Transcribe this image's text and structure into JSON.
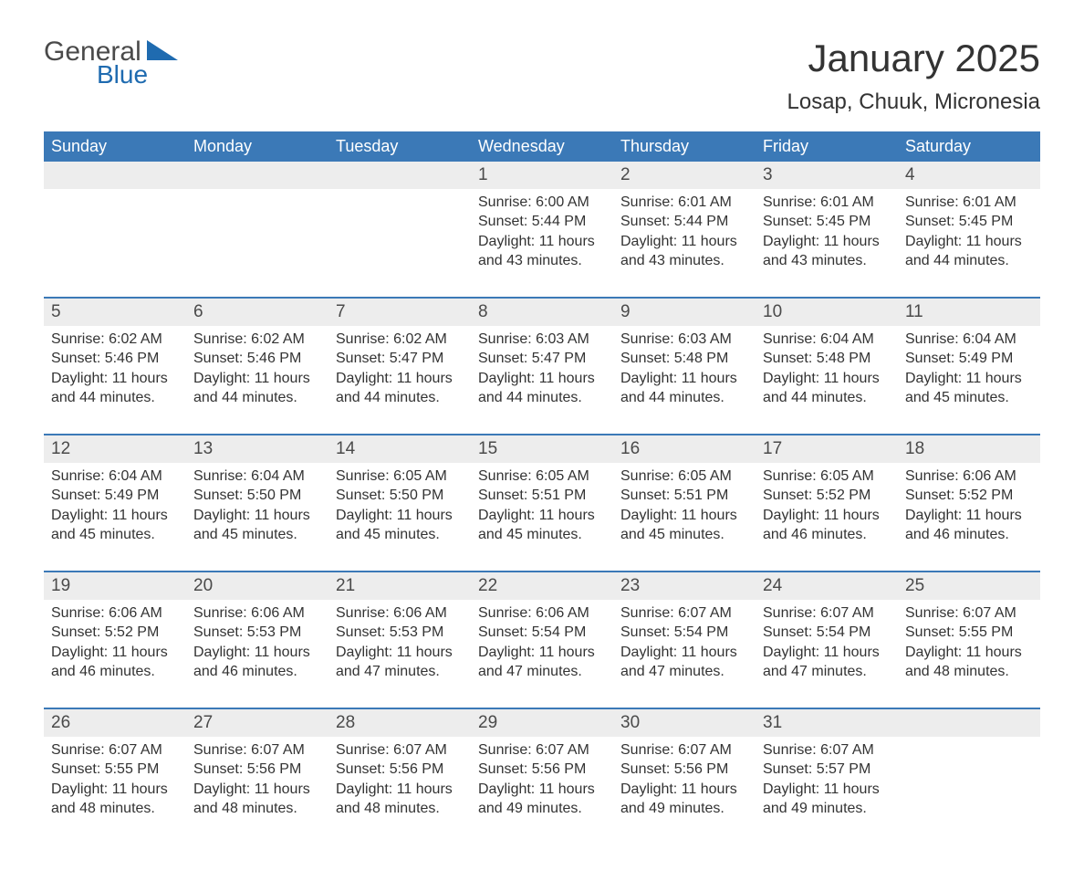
{
  "logo": {
    "word1": "General",
    "word2": "Blue"
  },
  "title": "January 2025",
  "location": "Losap, Chuuk, Micronesia",
  "colors": {
    "header_bg": "#3b79b7",
    "header_text": "#ffffff",
    "daynum_bg": "#ededed",
    "daynum_border": "#3b79b7",
    "body_text": "#333333",
    "logo_blue": "#1f6bb0",
    "page_bg": "#ffffff"
  },
  "day_names": [
    "Sunday",
    "Monday",
    "Tuesday",
    "Wednesday",
    "Thursday",
    "Friday",
    "Saturday"
  ],
  "weeks": [
    [
      {
        "n": "",
        "sunrise": "",
        "sunset": "",
        "daylight": ""
      },
      {
        "n": "",
        "sunrise": "",
        "sunset": "",
        "daylight": ""
      },
      {
        "n": "",
        "sunrise": "",
        "sunset": "",
        "daylight": ""
      },
      {
        "n": "1",
        "sunrise": "Sunrise: 6:00 AM",
        "sunset": "Sunset: 5:44 PM",
        "daylight": "Daylight: 11 hours and 43 minutes."
      },
      {
        "n": "2",
        "sunrise": "Sunrise: 6:01 AM",
        "sunset": "Sunset: 5:44 PM",
        "daylight": "Daylight: 11 hours and 43 minutes."
      },
      {
        "n": "3",
        "sunrise": "Sunrise: 6:01 AM",
        "sunset": "Sunset: 5:45 PM",
        "daylight": "Daylight: 11 hours and 43 minutes."
      },
      {
        "n": "4",
        "sunrise": "Sunrise: 6:01 AM",
        "sunset": "Sunset: 5:45 PM",
        "daylight": "Daylight: 11 hours and 44 minutes."
      }
    ],
    [
      {
        "n": "5",
        "sunrise": "Sunrise: 6:02 AM",
        "sunset": "Sunset: 5:46 PM",
        "daylight": "Daylight: 11 hours and 44 minutes."
      },
      {
        "n": "6",
        "sunrise": "Sunrise: 6:02 AM",
        "sunset": "Sunset: 5:46 PM",
        "daylight": "Daylight: 11 hours and 44 minutes."
      },
      {
        "n": "7",
        "sunrise": "Sunrise: 6:02 AM",
        "sunset": "Sunset: 5:47 PM",
        "daylight": "Daylight: 11 hours and 44 minutes."
      },
      {
        "n": "8",
        "sunrise": "Sunrise: 6:03 AM",
        "sunset": "Sunset: 5:47 PM",
        "daylight": "Daylight: 11 hours and 44 minutes."
      },
      {
        "n": "9",
        "sunrise": "Sunrise: 6:03 AM",
        "sunset": "Sunset: 5:48 PM",
        "daylight": "Daylight: 11 hours and 44 minutes."
      },
      {
        "n": "10",
        "sunrise": "Sunrise: 6:04 AM",
        "sunset": "Sunset: 5:48 PM",
        "daylight": "Daylight: 11 hours and 44 minutes."
      },
      {
        "n": "11",
        "sunrise": "Sunrise: 6:04 AM",
        "sunset": "Sunset: 5:49 PM",
        "daylight": "Daylight: 11 hours and 45 minutes."
      }
    ],
    [
      {
        "n": "12",
        "sunrise": "Sunrise: 6:04 AM",
        "sunset": "Sunset: 5:49 PM",
        "daylight": "Daylight: 11 hours and 45 minutes."
      },
      {
        "n": "13",
        "sunrise": "Sunrise: 6:04 AM",
        "sunset": "Sunset: 5:50 PM",
        "daylight": "Daylight: 11 hours and 45 minutes."
      },
      {
        "n": "14",
        "sunrise": "Sunrise: 6:05 AM",
        "sunset": "Sunset: 5:50 PM",
        "daylight": "Daylight: 11 hours and 45 minutes."
      },
      {
        "n": "15",
        "sunrise": "Sunrise: 6:05 AM",
        "sunset": "Sunset: 5:51 PM",
        "daylight": "Daylight: 11 hours and 45 minutes."
      },
      {
        "n": "16",
        "sunrise": "Sunrise: 6:05 AM",
        "sunset": "Sunset: 5:51 PM",
        "daylight": "Daylight: 11 hours and 45 minutes."
      },
      {
        "n": "17",
        "sunrise": "Sunrise: 6:05 AM",
        "sunset": "Sunset: 5:52 PM",
        "daylight": "Daylight: 11 hours and 46 minutes."
      },
      {
        "n": "18",
        "sunrise": "Sunrise: 6:06 AM",
        "sunset": "Sunset: 5:52 PM",
        "daylight": "Daylight: 11 hours and 46 minutes."
      }
    ],
    [
      {
        "n": "19",
        "sunrise": "Sunrise: 6:06 AM",
        "sunset": "Sunset: 5:52 PM",
        "daylight": "Daylight: 11 hours and 46 minutes."
      },
      {
        "n": "20",
        "sunrise": "Sunrise: 6:06 AM",
        "sunset": "Sunset: 5:53 PM",
        "daylight": "Daylight: 11 hours and 46 minutes."
      },
      {
        "n": "21",
        "sunrise": "Sunrise: 6:06 AM",
        "sunset": "Sunset: 5:53 PM",
        "daylight": "Daylight: 11 hours and 47 minutes."
      },
      {
        "n": "22",
        "sunrise": "Sunrise: 6:06 AM",
        "sunset": "Sunset: 5:54 PM",
        "daylight": "Daylight: 11 hours and 47 minutes."
      },
      {
        "n": "23",
        "sunrise": "Sunrise: 6:07 AM",
        "sunset": "Sunset: 5:54 PM",
        "daylight": "Daylight: 11 hours and 47 minutes."
      },
      {
        "n": "24",
        "sunrise": "Sunrise: 6:07 AM",
        "sunset": "Sunset: 5:54 PM",
        "daylight": "Daylight: 11 hours and 47 minutes."
      },
      {
        "n": "25",
        "sunrise": "Sunrise: 6:07 AM",
        "sunset": "Sunset: 5:55 PM",
        "daylight": "Daylight: 11 hours and 48 minutes."
      }
    ],
    [
      {
        "n": "26",
        "sunrise": "Sunrise: 6:07 AM",
        "sunset": "Sunset: 5:55 PM",
        "daylight": "Daylight: 11 hours and 48 minutes."
      },
      {
        "n": "27",
        "sunrise": "Sunrise: 6:07 AM",
        "sunset": "Sunset: 5:56 PM",
        "daylight": "Daylight: 11 hours and 48 minutes."
      },
      {
        "n": "28",
        "sunrise": "Sunrise: 6:07 AM",
        "sunset": "Sunset: 5:56 PM",
        "daylight": "Daylight: 11 hours and 48 minutes."
      },
      {
        "n": "29",
        "sunrise": "Sunrise: 6:07 AM",
        "sunset": "Sunset: 5:56 PM",
        "daylight": "Daylight: 11 hours and 49 minutes."
      },
      {
        "n": "30",
        "sunrise": "Sunrise: 6:07 AM",
        "sunset": "Sunset: 5:56 PM",
        "daylight": "Daylight: 11 hours and 49 minutes."
      },
      {
        "n": "31",
        "sunrise": "Sunrise: 6:07 AM",
        "sunset": "Sunset: 5:57 PM",
        "daylight": "Daylight: 11 hours and 49 minutes."
      },
      {
        "n": "",
        "sunrise": "",
        "sunset": "",
        "daylight": ""
      }
    ]
  ]
}
